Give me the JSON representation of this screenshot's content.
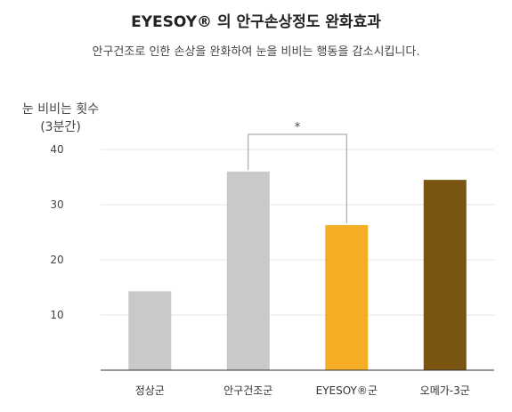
{
  "chart_data": {
    "type": "bar",
    "title": "EYESOY®  의 안구손상정도 완화효과",
    "subtitle": "안구건조로 인한 손상을 완화하여 눈을 비비는 행동을 감소시킵니다.",
    "ylabel_line1": "눈 비비는 횟수",
    "ylabel_line2": "(3분간)",
    "categories": [
      "정상군",
      "안구건조군",
      "EYESOY®군",
      "오메가-3군"
    ],
    "values": [
      14.3,
      36,
      26.3,
      34.5
    ],
    "colors": [
      "#c9c9c9",
      "#c9c9c9",
      "#f5ad26",
      "#7a5411"
    ],
    "ylim": [
      0,
      40
    ],
    "yticks": [
      10,
      20,
      30,
      40
    ],
    "grid": true,
    "significance": {
      "from": 1,
      "to": 2,
      "label": "*"
    }
  }
}
